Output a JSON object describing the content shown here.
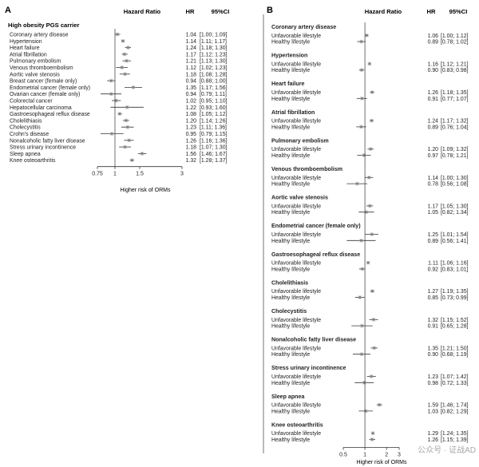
{
  "chart_data": [
    {
      "panel": "A",
      "type": "forest",
      "header": {
        "col1": "Hazard Ratio",
        "col2": "HR",
        "col3": "95%CI"
      },
      "group_title": "High obesity PGS carrier",
      "rows": [
        {
          "label": "Coronary artery disease",
          "hr": 1.04,
          "lo": 1.0,
          "hi": 1.09,
          "hr_text": "1.04",
          "ci_text": "[1.00; 1.09]"
        },
        {
          "label": "Hypertension",
          "hr": 1.14,
          "lo": 1.11,
          "hi": 1.17,
          "hr_text": "1.14",
          "ci_text": "[1.11; 1.17]"
        },
        {
          "label": "Heart failure",
          "hr": 1.24,
          "lo": 1.18,
          "hi": 1.3,
          "hr_text": "1.24",
          "ci_text": "[1.18; 1.30]"
        },
        {
          "label": "Atrial fibrillation",
          "hr": 1.17,
          "lo": 1.12,
          "hi": 1.23,
          "hr_text": "1.17",
          "ci_text": "[1.12; 1.23]"
        },
        {
          "label": "Pulmonary embolism",
          "hr": 1.21,
          "lo": 1.13,
          "hi": 1.3,
          "hr_text": "1.21",
          "ci_text": "[1.13; 1.30]"
        },
        {
          "label": "Venous thromboembolism",
          "hr": 1.12,
          "lo": 1.02,
          "hi": 1.23,
          "hr_text": "1.12",
          "ci_text": "[1.02; 1.23]"
        },
        {
          "label": "Aortic valve stenosis",
          "hr": 1.18,
          "lo": 1.08,
          "hi": 1.28,
          "hr_text": "1.18",
          "ci_text": "[1.08; 1.28]"
        },
        {
          "label": "Breast cancer (female only)",
          "hr": 0.94,
          "lo": 0.88,
          "hi": 1.0,
          "hr_text": "0.94",
          "ci_text": "[0.88; 1.00]"
        },
        {
          "label": "Endometrial cancer (female only)",
          "hr": 1.35,
          "lo": 1.17,
          "hi": 1.56,
          "hr_text": "1.35",
          "ci_text": "[1.17; 1.56]"
        },
        {
          "label": "Ovarian cancer (female only)",
          "hr": 0.94,
          "lo": 0.79,
          "hi": 1.11,
          "hr_text": "0.94",
          "ci_text": "[0.79; 1.11]"
        },
        {
          "label": "Colorectal cancer",
          "hr": 1.02,
          "lo": 0.95,
          "hi": 1.1,
          "hr_text": "1.02",
          "ci_text": "[0.95; 1.10]"
        },
        {
          "label": "Hepatocellular carcinoma",
          "hr": 1.22,
          "lo": 0.93,
          "hi": 1.6,
          "hr_text": "1.22",
          "ci_text": "[0.93; 1.60]"
        },
        {
          "label": "Gastroesophageal reflux disease",
          "hr": 1.08,
          "lo": 1.05,
          "hi": 1.12,
          "hr_text": "1.08",
          "ci_text": "[1.05; 1.12]"
        },
        {
          "label": "Cholelithiasis",
          "hr": 1.2,
          "lo": 1.14,
          "hi": 1.26,
          "hr_text": "1.20",
          "ci_text": "[1.14; 1.26]"
        },
        {
          "label": "Cholecystitis",
          "hr": 1.23,
          "lo": 1.11,
          "hi": 1.36,
          "hr_text": "1.23",
          "ci_text": "[1.11; 1.36]"
        },
        {
          "label": "Crohn's disease",
          "hr": 0.95,
          "lo": 0.79,
          "hi": 1.15,
          "hr_text": "0.95",
          "ci_text": "[0.79; 1.15]"
        },
        {
          "label": "Nonalcoholic fatty liver disease",
          "hr": 1.26,
          "lo": 1.16,
          "hi": 1.36,
          "hr_text": "1.26",
          "ci_text": "[1.16; 1.36]"
        },
        {
          "label": "Stress urinary incontinence",
          "hr": 1.18,
          "lo": 1.07,
          "hi": 1.3,
          "hr_text": "1.18",
          "ci_text": "[1.07; 1.30]"
        },
        {
          "label": "Sleep apnea",
          "hr": 1.56,
          "lo": 1.46,
          "hi": 1.67,
          "hr_text": "1.56",
          "ci_text": "[1.46; 1.67]"
        },
        {
          "label": "Knee osteoarthritis",
          "hr": 1.32,
          "lo": 1.28,
          "hi": 1.37,
          "hr_text": "1.32",
          "ci_text": "[1.28; 1.37]"
        }
      ],
      "x_ticks": [
        "0.75",
        "1",
        "1.5",
        "3"
      ],
      "x_tick_values": [
        0.75,
        1,
        1.5,
        3
      ],
      "xlabel": "Higher risk of ORMs",
      "xlim": [
        0.75,
        3
      ],
      "x_scale": "log",
      "reference_line": 1
    },
    {
      "panel": "B",
      "type": "forest",
      "header": {
        "col1": "Hazard Ratio",
        "col2": "HR",
        "col3": "95%CI"
      },
      "groups": [
        {
          "title": "Coronary artery disease",
          "rows": [
            {
              "label": "Unfavorable lifestyle",
              "hr": 1.06,
              "lo": 1.0,
              "hi": 1.12,
              "hr_text": "1.06",
              "ci_text": "[1.00; 1.12]"
            },
            {
              "label": "Healthy lifestyle",
              "hr": 0.89,
              "lo": 0.78,
              "hi": 1.02,
              "hr_text": "0.89",
              "ci_text": "[0.78; 1.02]"
            }
          ]
        },
        {
          "title": "Hypertension",
          "rows": [
            {
              "label": "Unfavorable lifestyle",
              "hr": 1.16,
              "lo": 1.12,
              "hi": 1.21,
              "hr_text": "1.16",
              "ci_text": "[1.12; 1.21]"
            },
            {
              "label": "Healthy lifestyle",
              "hr": 0.9,
              "lo": 0.83,
              "hi": 0.98,
              "hr_text": "0.90",
              "ci_text": "[0.83; 0.98]"
            }
          ]
        },
        {
          "title": "Heart failure",
          "rows": [
            {
              "label": "Unfavorable lifestyle",
              "hr": 1.26,
              "lo": 1.18,
              "hi": 1.35,
              "hr_text": "1.26",
              "ci_text": "[1.18; 1.35]"
            },
            {
              "label": "Healthy lifestyle",
              "hr": 0.91,
              "lo": 0.77,
              "hi": 1.07,
              "hr_text": "0.91",
              "ci_text": "[0.77; 1.07]"
            }
          ]
        },
        {
          "title": "Atrial fibrillation",
          "rows": [
            {
              "label": "Unfavorable lifestyle",
              "hr": 1.24,
              "lo": 1.17,
              "hi": 1.32,
              "hr_text": "1.24",
              "ci_text": "[1.17; 1.32]"
            },
            {
              "label": "Healthy lifestyle",
              "hr": 0.89,
              "lo": 0.76,
              "hi": 1.04,
              "hr_text": "0.89",
              "ci_text": "[0.76; 1.04]"
            }
          ]
        },
        {
          "title": "Pulmonary embolism",
          "rows": [
            {
              "label": "Unfavorable lifestyle",
              "hr": 1.2,
              "lo": 1.09,
              "hi": 1.32,
              "hr_text": "1.20",
              "ci_text": "[1.09; 1.32]"
            },
            {
              "label": "Healthy lifestyle",
              "hr": 0.97,
              "lo": 0.78,
              "hi": 1.21,
              "hr_text": "0.97",
              "ci_text": "[0.78; 1.21]"
            }
          ]
        },
        {
          "title": "Venous thromboembolism",
          "rows": [
            {
              "label": "Unfavorable lifestyle",
              "hr": 1.14,
              "lo": 1.0,
              "hi": 1.3,
              "hr_text": "1.14",
              "ci_text": "[1.00; 1.30]"
            },
            {
              "label": "Healthy lifestyle",
              "hr": 0.78,
              "lo": 0.56,
              "hi": 1.08,
              "hr_text": "0.78",
              "ci_text": "[0.56; 1.08]"
            }
          ]
        },
        {
          "title": "Aortic valve stenosis",
          "rows": [
            {
              "label": "Unfavorable lifestyle",
              "hr": 1.17,
              "lo": 1.05,
              "hi": 1.3,
              "hr_text": "1.17",
              "ci_text": "[1.05; 1.30]"
            },
            {
              "label": "Healthy lifestyle",
              "hr": 1.05,
              "lo": 0.82,
              "hi": 1.34,
              "hr_text": "1.05",
              "ci_text": "[0.82; 1.34]"
            }
          ]
        },
        {
          "title": "Endometrial cancer (female only)",
          "rows": [
            {
              "label": "Unfavorable lifestyle",
              "hr": 1.25,
              "lo": 1.01,
              "hi": 1.54,
              "hr_text": "1.25",
              "ci_text": "[1.01; 1.54]"
            },
            {
              "label": "Healthy lifestyle",
              "hr": 0.89,
              "lo": 0.56,
              "hi": 1.41,
              "hr_text": "0.89",
              "ci_text": "[0.56; 1.41]"
            }
          ]
        },
        {
          "title": "Gastroesophageal reflux disease",
          "rows": [
            {
              "label": "Unfavorable lifestyle",
              "hr": 1.11,
              "lo": 1.06,
              "hi": 1.16,
              "hr_text": "1.11",
              "ci_text": "[1.06; 1.16]"
            },
            {
              "label": "Healthy lifestyle",
              "hr": 0.92,
              "lo": 0.83,
              "hi": 1.01,
              "hr_text": "0.92",
              "ci_text": "[0.83; 1.01]"
            }
          ]
        },
        {
          "title": "Cholelithiasis",
          "rows": [
            {
              "label": "Unfavorable lifestyle",
              "hr": 1.27,
              "lo": 1.19,
              "hi": 1.35,
              "hr_text": "1.27",
              "ci_text": "[1.19; 1.35]"
            },
            {
              "label": "Healthy lifestyle",
              "hr": 0.85,
              "lo": 0.73,
              "hi": 0.99,
              "hr_text": "0.85",
              "ci_text": "[0.73; 0.99]"
            }
          ]
        },
        {
          "title": "Cholecystitis",
          "rows": [
            {
              "label": "Unfavorable lifestyle",
              "hr": 1.32,
              "lo": 1.15,
              "hi": 1.52,
              "hr_text": "1.32",
              "ci_text": "[1.15; 1.52]"
            },
            {
              "label": "Healthy lifestyle",
              "hr": 0.91,
              "lo": 0.65,
              "hi": 1.28,
              "hr_text": "0.91",
              "ci_text": "[0.65; 1.28]"
            }
          ]
        },
        {
          "title": "Nonalcoholic fatty liver disease",
          "rows": [
            {
              "label": "Unfavorable lifestyle",
              "hr": 1.35,
              "lo": 1.21,
              "hi": 1.5,
              "hr_text": "1.35",
              "ci_text": "[1.21; 1.50]"
            },
            {
              "label": "Healthy lifestyle",
              "hr": 0.9,
              "lo": 0.68,
              "hi": 1.19,
              "hr_text": "0.90",
              "ci_text": "[0.68; 1.19]"
            }
          ]
        },
        {
          "title": "Stress urinary incontinence",
          "rows": [
            {
              "label": "Unfavorable lifestyle",
              "hr": 1.23,
              "lo": 1.07,
              "hi": 1.42,
              "hr_text": "1.23",
              "ci_text": "[1.07; 1.42]"
            },
            {
              "label": "Healthy lifestyle",
              "hr": 0.98,
              "lo": 0.72,
              "hi": 1.33,
              "hr_text": "0.98",
              "ci_text": "[0.72; 1.33]"
            }
          ]
        },
        {
          "title": "Sleep apnea",
          "rows": [
            {
              "label": "Unfavorable lifestyle",
              "hr": 1.59,
              "lo": 1.46,
              "hi": 1.74,
              "hr_text": "1.59",
              "ci_text": "[1.46; 1.74]"
            },
            {
              "label": "Healthy lifestyle",
              "hr": 1.03,
              "lo": 0.82,
              "hi": 1.29,
              "hr_text": "1.03",
              "ci_text": "[0.82; 1.29]"
            }
          ]
        },
        {
          "title": "Knee osteoarthritis",
          "rows": [
            {
              "label": "Unfavorable lifestyle",
              "hr": 1.29,
              "lo": 1.24,
              "hi": 1.35,
              "hr_text": "1.29",
              "ci_text": "[1.24; 1.35]"
            },
            {
              "label": "Healthy lifestyle",
              "hr": 1.26,
              "lo": 1.15,
              "hi": 1.39,
              "hr_text": "1.26",
              "ci_text": "[1.15; 1.39]"
            }
          ]
        }
      ],
      "x_ticks": [
        "0.5",
        "1",
        "2",
        "3"
      ],
      "x_tick_values": [
        0.5,
        1,
        2,
        3
      ],
      "xlabel": "Higher risk of ORMs",
      "xlim": [
        0.5,
        3
      ],
      "x_scale": "log",
      "reference_line": 1
    }
  ],
  "watermark": "公众号 · 证战AD"
}
